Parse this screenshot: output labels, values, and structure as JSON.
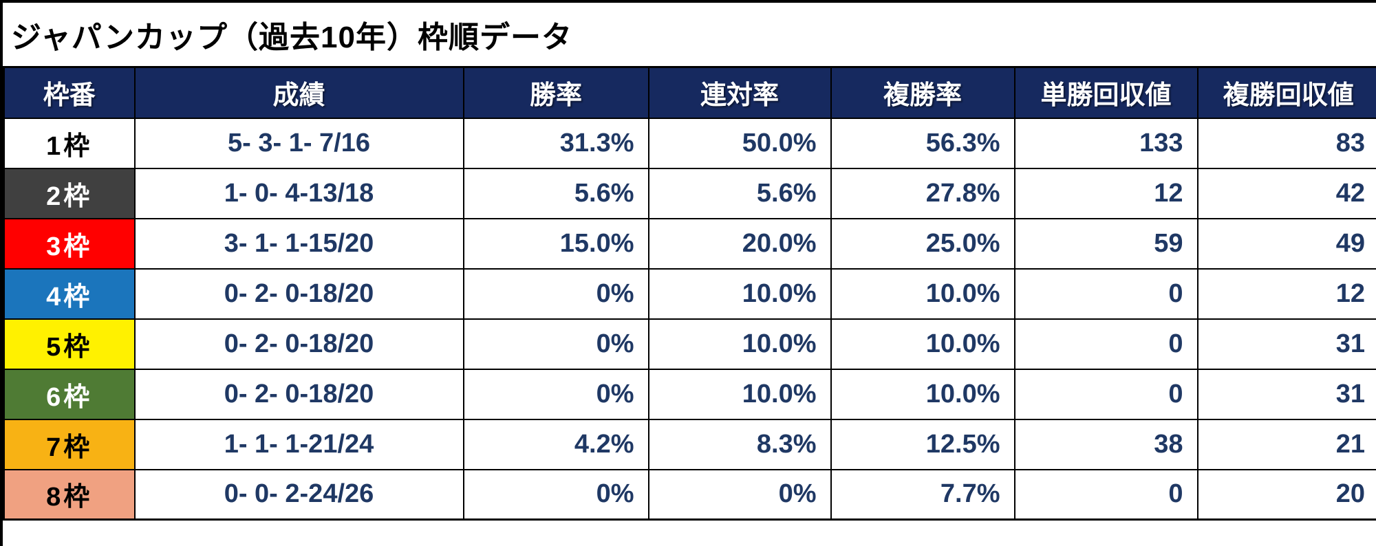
{
  "title": "ジャパンカップ（過去10年）枠順データ",
  "colors": {
    "header_bg": "#16295F",
    "header_text": "#FFFFFF",
    "data_text": "#1F3864",
    "border": "#000000",
    "page_bg": "#FFFFFF"
  },
  "table": {
    "columns": [
      {
        "key": "frame",
        "label": "枠番"
      },
      {
        "key": "record",
        "label": "成績"
      },
      {
        "key": "win_rate",
        "label": "勝率"
      },
      {
        "key": "place_rate",
        "label": "連対率"
      },
      {
        "key": "show_rate",
        "label": "複勝率"
      },
      {
        "key": "win_payout",
        "label": "単勝回収値"
      },
      {
        "key": "show_payout",
        "label": "複勝回収値"
      }
    ],
    "rows": [
      {
        "frame": "1枠",
        "frame_bg": "#FFFFFF",
        "frame_text": "#000000",
        "record": "5- 3- 1- 7/16",
        "win_rate": "31.3%",
        "place_rate": "50.0%",
        "show_rate": "56.3%",
        "win_payout": "133",
        "show_payout": "83"
      },
      {
        "frame": "2枠",
        "frame_bg": "#404040",
        "frame_text": "#FFFFFF",
        "record": "1- 0- 4-13/18",
        "win_rate": "5.6%",
        "place_rate": "5.6%",
        "show_rate": "27.8%",
        "win_payout": "12",
        "show_payout": "42"
      },
      {
        "frame": "3枠",
        "frame_bg": "#FF0000",
        "frame_text": "#FFFFFF",
        "record": "3- 1- 1-15/20",
        "win_rate": "15.0%",
        "place_rate": "20.0%",
        "show_rate": "25.0%",
        "win_payout": "59",
        "show_payout": "49"
      },
      {
        "frame": "4枠",
        "frame_bg": "#1B75BC",
        "frame_text": "#FFFFFF",
        "record": "0- 2- 0-18/20",
        "win_rate": "0%",
        "place_rate": "10.0%",
        "show_rate": "10.0%",
        "win_payout": "0",
        "show_payout": "12"
      },
      {
        "frame": "5枠",
        "frame_bg": "#FFF100",
        "frame_text": "#000000",
        "record": "0- 2- 0-18/20",
        "win_rate": "0%",
        "place_rate": "10.0%",
        "show_rate": "10.0%",
        "win_payout": "0",
        "show_payout": "31"
      },
      {
        "frame": "6枠",
        "frame_bg": "#4F7B34",
        "frame_text": "#FFFFFF",
        "record": "0- 2- 0-18/20",
        "win_rate": "0%",
        "place_rate": "10.0%",
        "show_rate": "10.0%",
        "win_payout": "0",
        "show_payout": "31"
      },
      {
        "frame": "7枠",
        "frame_bg": "#F8B214",
        "frame_text": "#000000",
        "record": "1- 1- 1-21/24",
        "win_rate": "4.2%",
        "place_rate": "8.3%",
        "show_rate": "12.5%",
        "win_payout": "38",
        "show_payout": "21"
      },
      {
        "frame": "8枠",
        "frame_bg": "#F0A181",
        "frame_text": "#000000",
        "record": "0- 0- 2-24/26",
        "win_rate": "0%",
        "place_rate": "0%",
        "show_rate": "7.7%",
        "win_payout": "0",
        "show_payout": "20"
      }
    ]
  },
  "chart_data": {
    "type": "table",
    "title": "ジャパンカップ（過去10年）枠順データ",
    "columns": [
      "枠番",
      "成績",
      "勝率",
      "連対率",
      "複勝率",
      "単勝回収値",
      "複勝回収値"
    ],
    "rows": [
      [
        "1枠",
        "5- 3- 1- 7/16",
        "31.3%",
        "50.0%",
        "56.3%",
        "133",
        "83"
      ],
      [
        "2枠",
        "1- 0- 4-13/18",
        "5.6%",
        "5.6%",
        "27.8%",
        "12",
        "42"
      ],
      [
        "3枠",
        "3- 1- 1-15/20",
        "15.0%",
        "20.0%",
        "25.0%",
        "59",
        "49"
      ],
      [
        "4枠",
        "0- 2- 0-18/20",
        "0%",
        "10.0%",
        "10.0%",
        "0",
        "12"
      ],
      [
        "5枠",
        "0- 2- 0-18/20",
        "0%",
        "10.0%",
        "10.0%",
        "0",
        "31"
      ],
      [
        "6枠",
        "0- 2- 0-18/20",
        "0%",
        "10.0%",
        "10.0%",
        "0",
        "31"
      ],
      [
        "7枠",
        "1- 1- 1-21/24",
        "4.2%",
        "8.3%",
        "12.5%",
        "38",
        "21"
      ],
      [
        "8枠",
        "0- 0- 2-24/26",
        "0%",
        "0%",
        "7.7%",
        "0",
        "20"
      ]
    ]
  }
}
